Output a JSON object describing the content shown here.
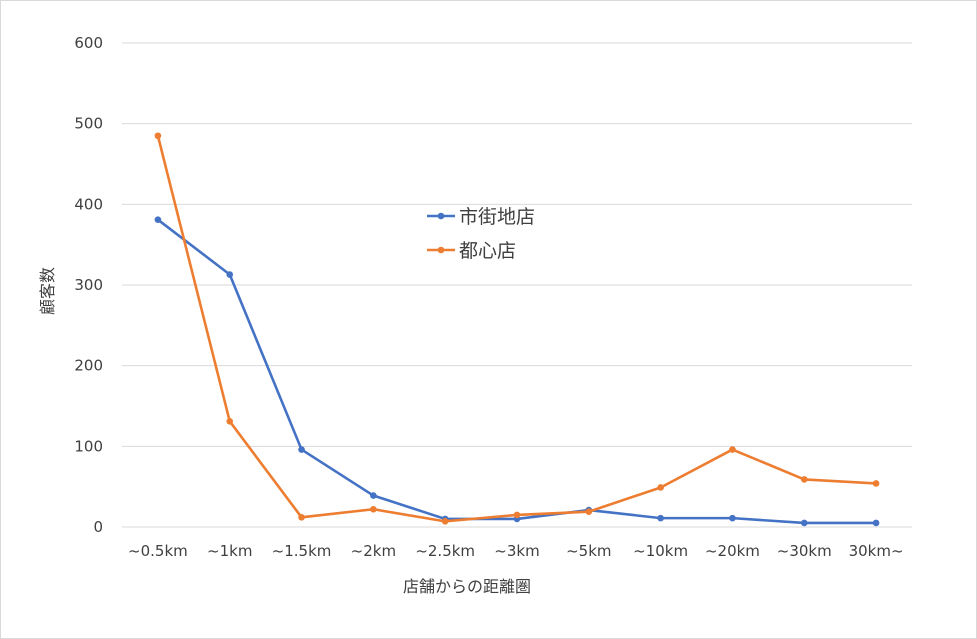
{
  "chart_data": {
    "type": "line",
    "title": "",
    "xlabel": "店舗からの距離圏",
    "ylabel": "顧客数",
    "categories": [
      "~0.5km",
      "~1km",
      "~1.5km",
      "~2km",
      "~2.5km",
      "~3km",
      "~5km",
      "~10km",
      "~20km",
      "~30km",
      "30km~"
    ],
    "ylim": [
      0,
      600
    ],
    "yticks": [
      0,
      100,
      200,
      300,
      400,
      500,
      600
    ],
    "grid": true,
    "legend_position": "center",
    "series": [
      {
        "name": "市街地店",
        "color": "#4472C4",
        "values": [
          381,
          313,
          96,
          39,
          10,
          10,
          21,
          11,
          11,
          5,
          5
        ]
      },
      {
        "name": "都心店",
        "color": "#ED7D31",
        "values": [
          485,
          131,
          12,
          22,
          7,
          15,
          19,
          49,
          96,
          59,
          54
        ]
      }
    ]
  }
}
